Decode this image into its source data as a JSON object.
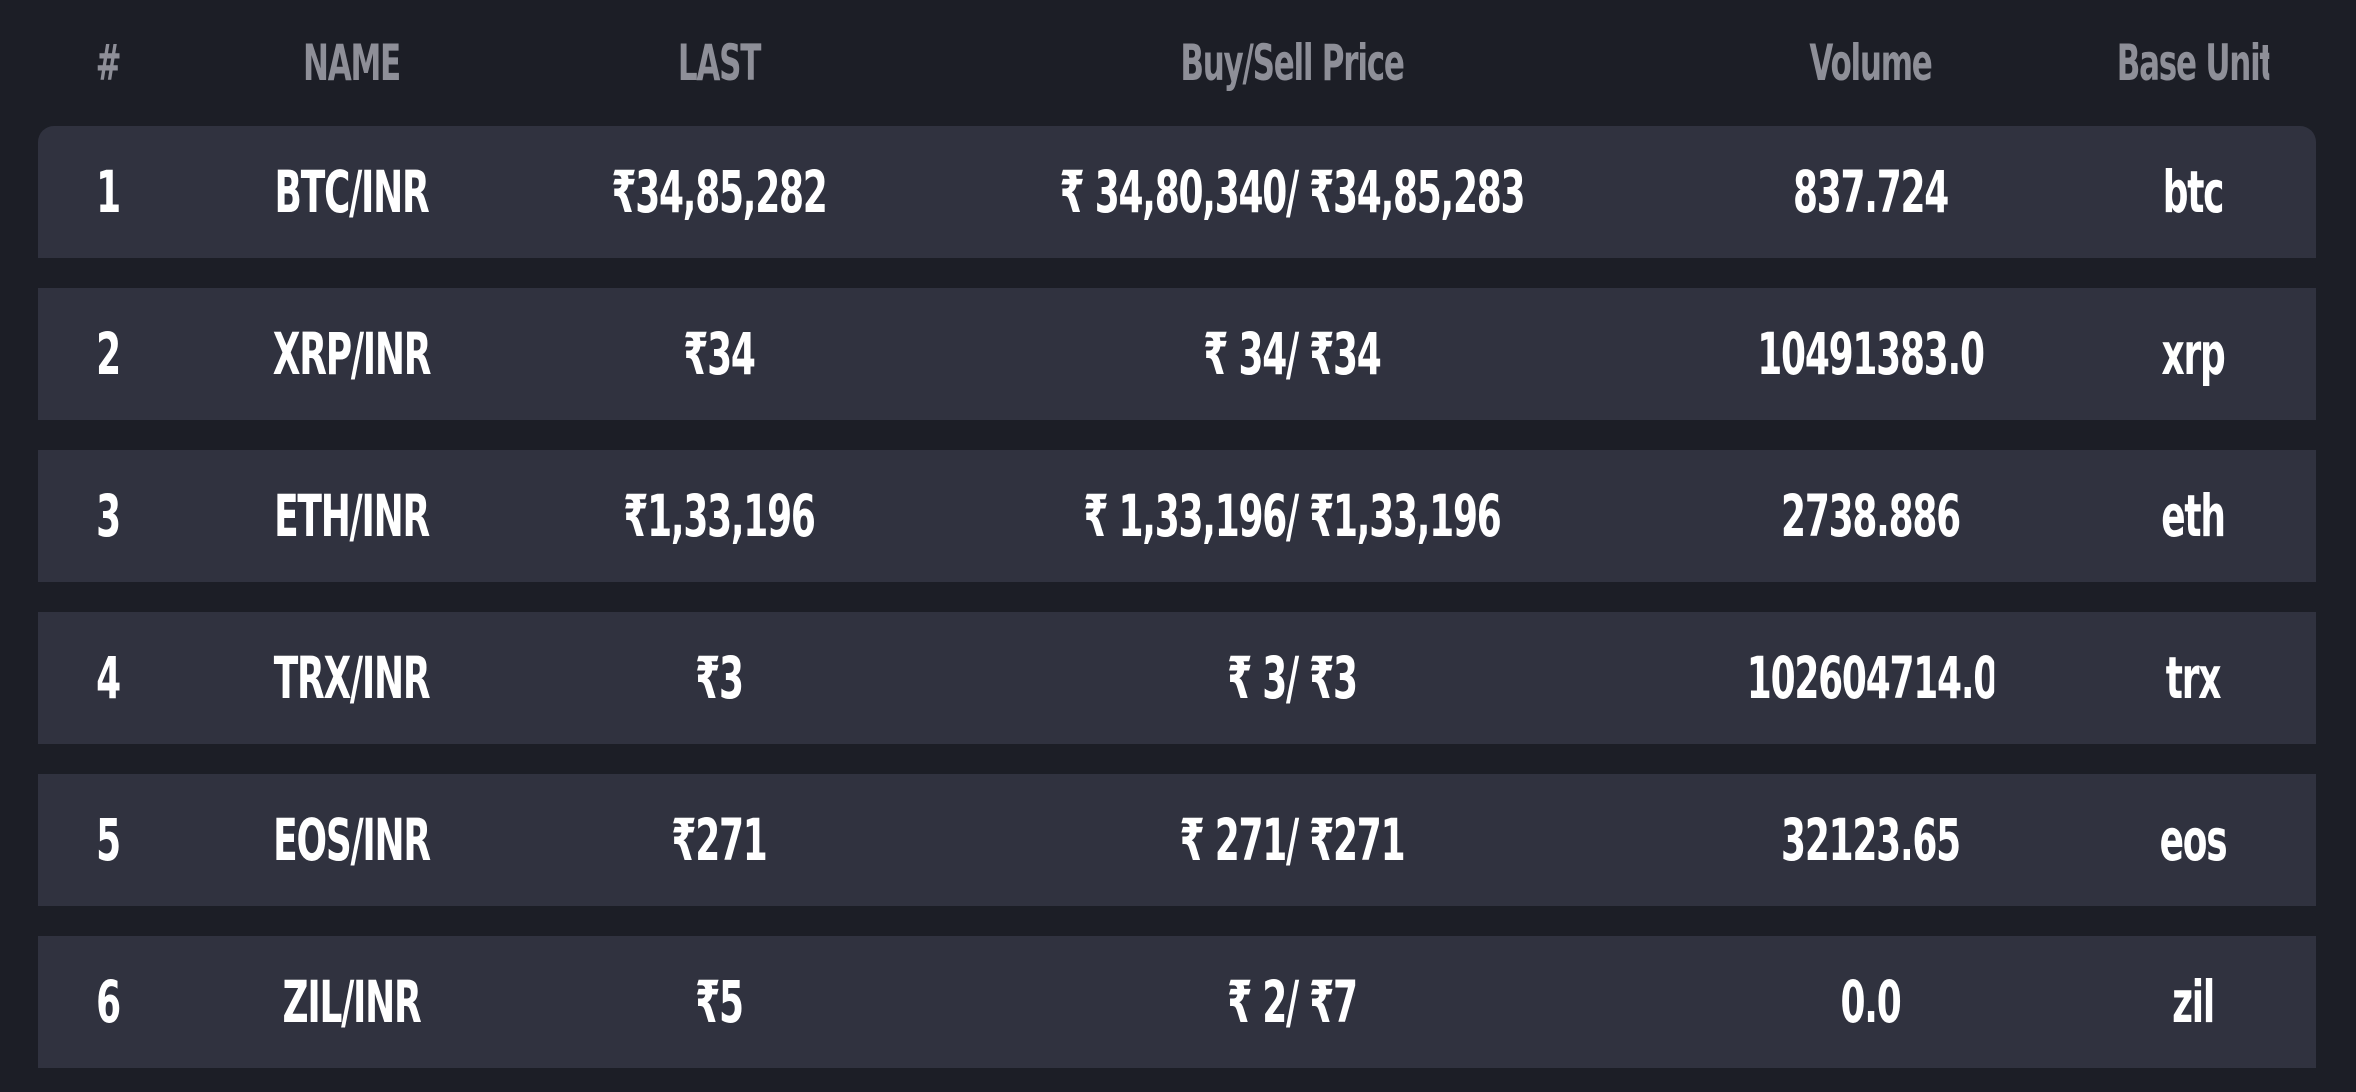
{
  "columns": {
    "num": "#",
    "name": "NAME",
    "last": "LAST",
    "price": "Buy/Sell Price",
    "volume": "Volume",
    "unit": "Base Unit"
  },
  "rows": [
    {
      "num": "1",
      "name": "BTC/INR",
      "last": "₹34,85,282",
      "price": "₹ 34,80,340/ ₹34,85,283",
      "volume": "837.724",
      "unit": "btc"
    },
    {
      "num": "2",
      "name": "XRP/INR",
      "last": "₹34",
      "price": "₹ 34/ ₹34",
      "volume": "10491383.0",
      "unit": "xrp"
    },
    {
      "num": "3",
      "name": "ETH/INR",
      "last": "₹1,33,196",
      "price": "₹ 1,33,196/ ₹1,33,196",
      "volume": "2738.886",
      "unit": "eth"
    },
    {
      "num": "4",
      "name": "TRX/INR",
      "last": "₹3",
      "price": "₹ 3/ ₹3",
      "volume": "102604714.0",
      "unit": "trx"
    },
    {
      "num": "5",
      "name": "EOS/INR",
      "last": "₹271",
      "price": "₹ 271/ ₹271",
      "volume": "32123.65",
      "unit": "eos"
    },
    {
      "num": "6",
      "name": "ZIL/INR",
      "last": "₹5",
      "price": "₹ 2/ ₹7",
      "volume": "0.0",
      "unit": "zil"
    }
  ],
  "colors": {
    "background": "#1c1e26",
    "row_background": "#30323f",
    "header_text": "#8e8f98",
    "cell_text": "#ffffff"
  }
}
